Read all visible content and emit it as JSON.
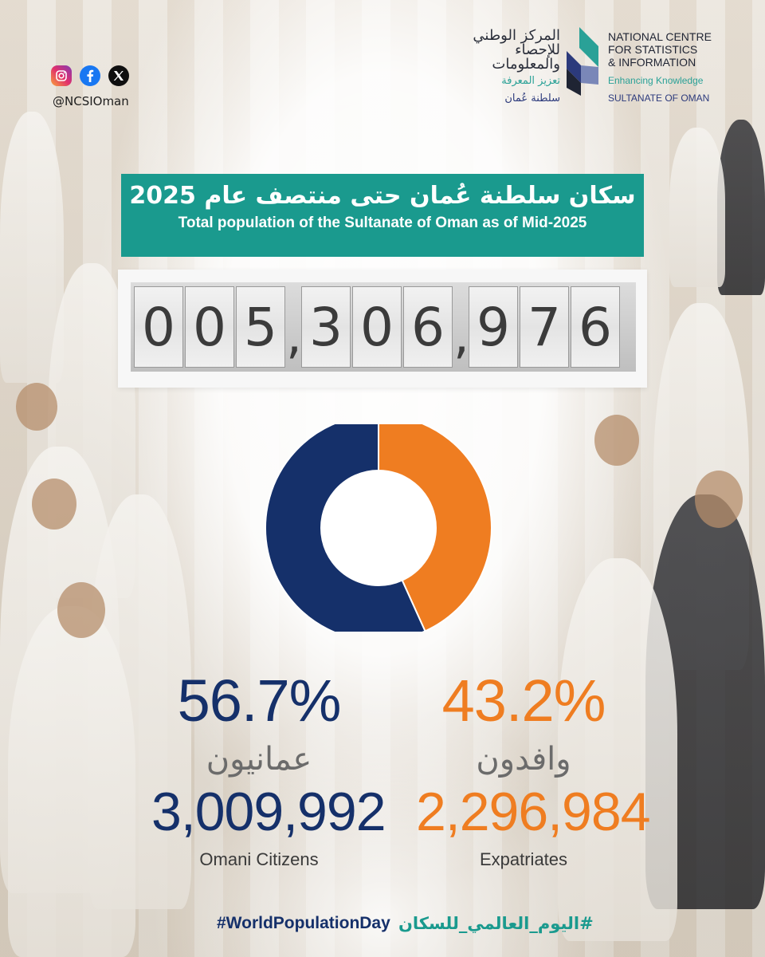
{
  "social": {
    "icons": [
      "instagram-icon",
      "facebook-icon",
      "x-icon"
    ],
    "handle": "@NCSIOman"
  },
  "logo": {
    "ar_name": "المركز الوطني للإحصاء والمعلومات",
    "ar_tagline": "تعزيز المعرفة",
    "ar_country": "سلطنة عُمان",
    "en_name": "NATIONAL CENTRE FOR STATISTICS & INFORMATION",
    "en_line1": "NATIONAL CENTRE",
    "en_line2": "FOR STATISTICS",
    "en_line3": "& INFORMATION",
    "en_tagline": "Enhancing Knowledge",
    "en_country": "SULTANATE OF OMAN"
  },
  "title": {
    "ar": "سكان سلطنة عُمان حتى منتصف عام 2025",
    "en": "Total population of the Sultanate of Oman as of Mid-2025"
  },
  "counter": {
    "value": "005,306,976",
    "groups": [
      "005",
      "306",
      "976"
    ]
  },
  "chart_data": {
    "type": "pie",
    "style": "donut",
    "labels": [
      "Omani Citizens",
      "Expatriates"
    ],
    "values": [
      56.7,
      43.2
    ],
    "counts": [
      3009992,
      2296984
    ],
    "colors": [
      "#15306a",
      "#ef7d21"
    ]
  },
  "stats": {
    "citizens": {
      "pct": "56.7%",
      "ar": "عمانيون",
      "count": "3,009,992",
      "en": "Omani Citizens"
    },
    "expats": {
      "pct": "43.2%",
      "ar": "وافدون",
      "count": "2,296,984",
      "en": "Expatriates"
    }
  },
  "hashtags": {
    "en": "#WorldPopulationDay",
    "ar": "#اليوم_العالمي_للسكان"
  },
  "colors": {
    "teal": "#1a9a8e",
    "navy": "#15306a",
    "orange": "#ef7d21"
  }
}
